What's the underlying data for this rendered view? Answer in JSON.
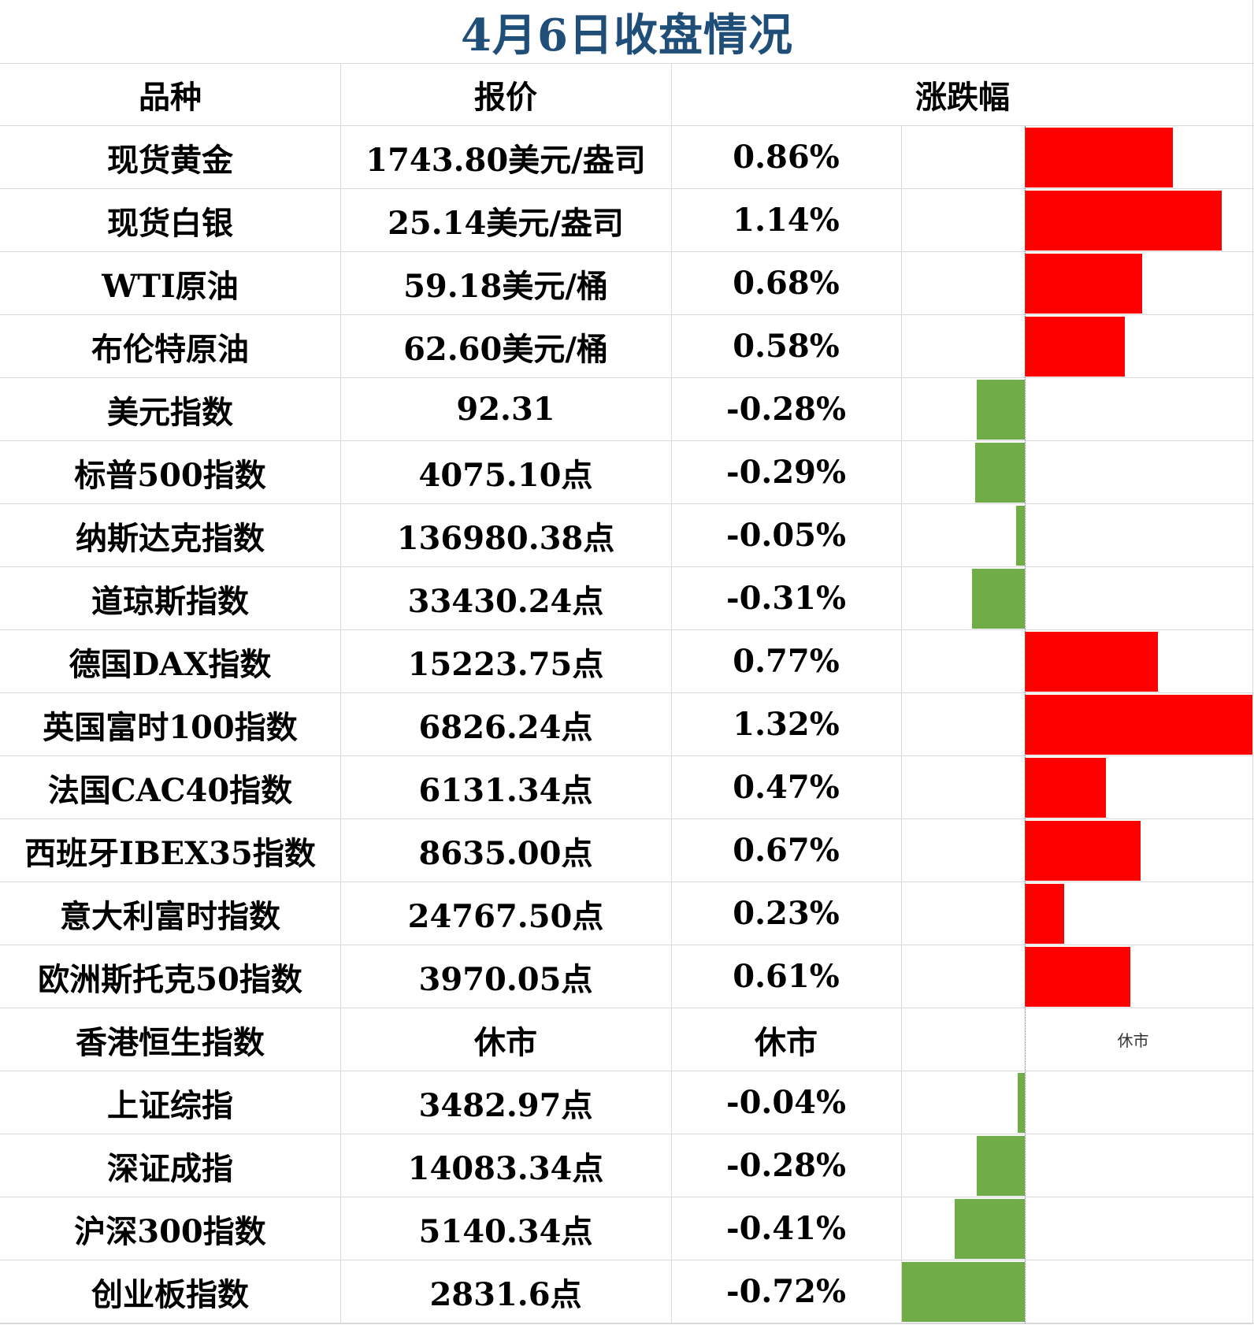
{
  "title": "4月6日收盘情况",
  "headers": {
    "name": "品种",
    "price": "报价",
    "change": "涨跌幅"
  },
  "colors": {
    "up": "#ff0000",
    "down": "#70ad47",
    "title": "#1f4e79"
  },
  "chart_data": {
    "type": "bar",
    "orientation": "horizontal",
    "categories": [
      "现货黄金",
      "现货白银",
      "WTI原油",
      "布伦特原油",
      "美元指数",
      "标普500指数",
      "纳斯达克指数",
      "道琼斯指数",
      "德国DAX指数",
      "英国富时100指数",
      "法国CAC40指数",
      "西班牙IBEX35指数",
      "意大利富时指数",
      "欧洲斯托克50指数",
      "香港恒生指数",
      "上证综指",
      "深证成指",
      "沪深300指数",
      "创业板指数"
    ],
    "values": [
      0.86,
      1.14,
      0.68,
      0.58,
      -0.28,
      -0.29,
      -0.05,
      -0.31,
      0.77,
      1.32,
      0.47,
      0.67,
      0.23,
      0.61,
      null,
      -0.04,
      -0.28,
      -0.41,
      -0.72
    ],
    "xlim": [
      -0.72,
      1.32
    ]
  },
  "rows": [
    {
      "name": "现货黄金",
      "price": "1743.80美元/盎司",
      "pct": "0.86%",
      "value": 0.86
    },
    {
      "name": "现货白银",
      "price": "25.14美元/盎司",
      "pct": "1.14%",
      "value": 1.14
    },
    {
      "name": "WTI原油",
      "price": "59.18美元/桶",
      "pct": "0.68%",
      "value": 0.68
    },
    {
      "name": "布伦特原油",
      "price": "62.60美元/桶",
      "pct": "0.58%",
      "value": 0.58
    },
    {
      "name": "美元指数",
      "price": "92.31",
      "pct": "-0.28%",
      "value": -0.28
    },
    {
      "name": "标普500指数",
      "price": "4075.10点",
      "pct": "-0.29%",
      "value": -0.29
    },
    {
      "name": "纳斯达克指数",
      "price": "136980.38点",
      "pct": "-0.05%",
      "value": -0.05
    },
    {
      "name": "道琼斯指数",
      "price": "33430.24点",
      "pct": "-0.31%",
      "value": -0.31
    },
    {
      "name": "德国DAX指数",
      "price": "15223.75点",
      "pct": "0.77%",
      "value": 0.77
    },
    {
      "name": "英国富时100指数",
      "price": "6826.24点",
      "pct": "1.32%",
      "value": 1.32
    },
    {
      "name": "法国CAC40指数",
      "price": "6131.34点",
      "pct": "0.47%",
      "value": 0.47
    },
    {
      "name": "西班牙IBEX35指数",
      "price": "8635.00点",
      "pct": "0.67%",
      "value": 0.67
    },
    {
      "name": "意大利富时指数",
      "price": "24767.50点",
      "pct": "0.23%",
      "value": 0.23
    },
    {
      "name": "欧洲斯托克50指数",
      "price": "3970.05点",
      "pct": "0.61%",
      "value": 0.61
    },
    {
      "name": "香港恒生指数",
      "price": "休市",
      "pct": "休市",
      "value": null,
      "note": "休市"
    },
    {
      "name": "上证综指",
      "price": "3482.97点",
      "pct": "-0.04%",
      "value": -0.04
    },
    {
      "name": "深证成指",
      "price": "14083.34点",
      "pct": "-0.28%",
      "value": -0.28
    },
    {
      "name": "沪深300指数",
      "price": "5140.34点",
      "pct": "-0.41%",
      "value": -0.41
    },
    {
      "name": "创业板指数",
      "price": "2831.6点",
      "pct": "-0.72%",
      "value": -0.72
    }
  ]
}
